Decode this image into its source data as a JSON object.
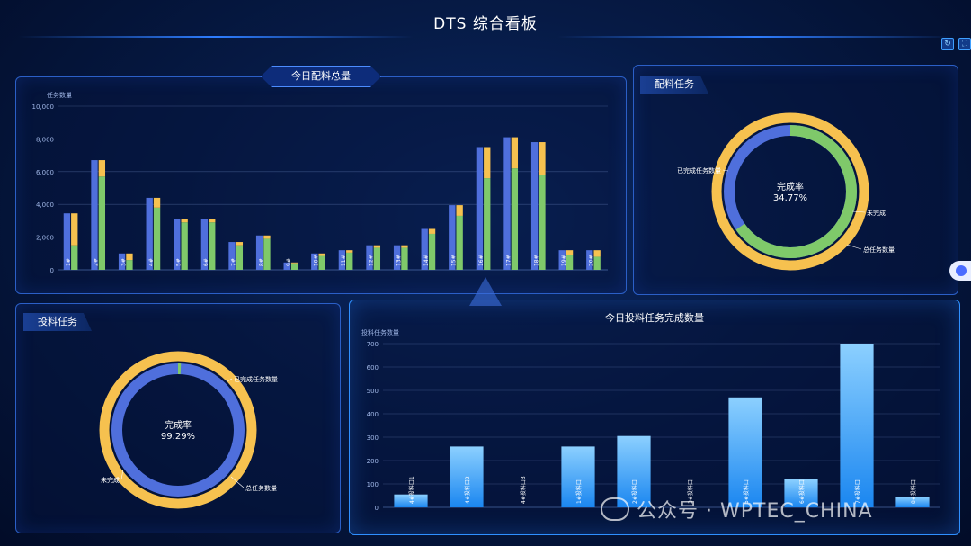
{
  "header": {
    "title": "DTS 综合看板"
  },
  "colors": {
    "blue": "#4f6fdc",
    "green": "#7fc96a",
    "orange": "#f6c14f",
    "bar_blue": "#2a8cff"
  },
  "panels": {
    "top_left": {
      "tab_label": "今日配料总量"
    },
    "top_right": {
      "tag": "配料任务"
    },
    "bottom_left": {
      "tag": "投料任务"
    },
    "bottom_right": {
      "heading": "今日投料任务完成数量"
    }
  },
  "chart_data": [
    {
      "id": "peiliao-total",
      "type": "bar",
      "ylabel": "任务数量",
      "ylim": [
        0,
        10000
      ],
      "yticks": [
        "0",
        "2,000",
        "4,000",
        "6,000",
        "8,000",
        "10,000"
      ],
      "categories": [
        "1#",
        "2#",
        "3#",
        "4#",
        "5#",
        "6#",
        "7#",
        "8#",
        "9#",
        "10#",
        "11#",
        "12#",
        "13#",
        "14#",
        "15#",
        "16#",
        "17#",
        "18#",
        "19#",
        "20#"
      ],
      "series": [
        {
          "values": [
            3450,
            6700,
            1000,
            4400,
            3100,
            3100,
            1700,
            2100,
            450,
            1000,
            1200,
            1500,
            1500,
            2500,
            3950,
            7500,
            8100,
            7800,
            1200,
            1200
          ],
          "color": "#4f6fdc"
        },
        {
          "values": [
            3450,
            6700,
            1000,
            4400,
            3100,
            3100,
            1700,
            2100,
            450,
            1000,
            1200,
            1500,
            1500,
            2500,
            3950,
            7500,
            8100,
            7800,
            1200,
            1200
          ],
          "segments": [
            [
              1500,
              1950
            ],
            [
              5700,
              1000
            ],
            [
              600,
              400
            ],
            [
              3800,
              600
            ],
            [
              2900,
              200
            ],
            [
              2900,
              200
            ],
            [
              1500,
              200
            ],
            [
              1900,
              200
            ],
            [
              400,
              50
            ],
            [
              850,
              150
            ],
            [
              1050,
              150
            ],
            [
              1350,
              150
            ],
            [
              1350,
              150
            ],
            [
              2200,
              300
            ],
            [
              3300,
              650
            ],
            [
              5600,
              1900
            ],
            [
              6200,
              1900
            ],
            [
              5800,
              2000
            ],
            [
              900,
              300
            ],
            [
              800,
              400
            ]
          ]
        }
      ]
    },
    {
      "id": "peiliao-task",
      "type": "pie",
      "center_label": "完成率",
      "center_value": "34.77%",
      "legend": [
        "已完成任务数量",
        "未完成",
        "总任务数量"
      ],
      "values": [
        34.77,
        65.23
      ]
    },
    {
      "id": "touliao-task",
      "type": "pie",
      "center_label": "完成率",
      "center_value": "99.29%",
      "legend": [
        "已完成任务数量",
        "未完成",
        "总任务数量"
      ],
      "values": [
        99.29,
        0.71
      ]
    },
    {
      "id": "touliao-count",
      "type": "bar",
      "ylabel": "投料任务数量",
      "ylim": [
        0,
        700
      ],
      "yticks": [
        "0",
        "100",
        "200",
        "300",
        "400",
        "500",
        "600",
        "700"
      ],
      "categories": [
        "4#投料口1",
        "4#投料口2",
        "4#投料口3",
        "1#投料口",
        "2#投料口",
        "3#投料口",
        "5#投料口",
        "6#投料口",
        "7#投料口",
        "8#投料口"
      ],
      "values": [
        55,
        260,
        0,
        260,
        305,
        0,
        470,
        120,
        700,
        45
      ]
    }
  ]
}
